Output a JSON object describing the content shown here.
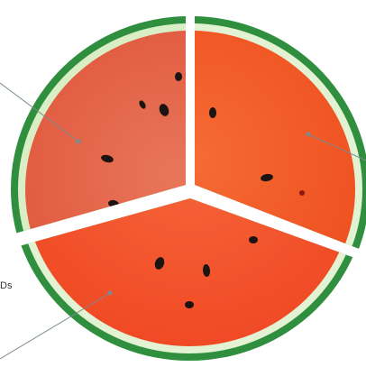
{
  "photo": {
    "subject": "watermelon-cross-section",
    "segments": 3,
    "colors": {
      "rind_dark": "#2f8f3f",
      "rind_light": "#e9f5d8",
      "flesh_top_left": "#e6603e",
      "flesh_top_right": "#f25a26",
      "flesh_bottom": "#f4502a",
      "seed": "#1c1412",
      "divider": "#ffffff",
      "leader_line": "#7a8a90"
    }
  },
  "labels": {
    "left_partial": "Ds"
  }
}
